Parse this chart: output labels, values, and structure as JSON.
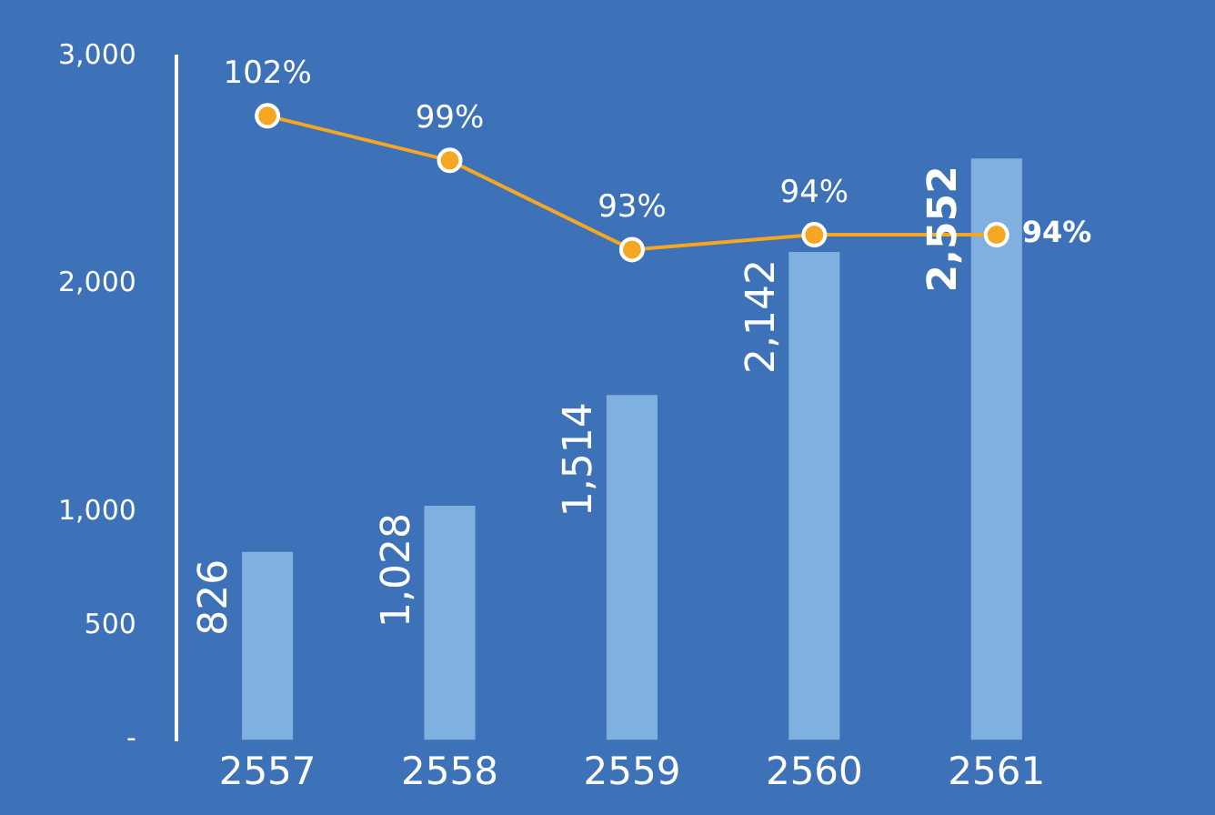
{
  "chart_data": {
    "type": "bar",
    "categories": [
      "2557",
      "2558",
      "2559",
      "2560",
      "2561"
    ],
    "series": [
      {
        "color": "#7fb0e0",
        "values": [
          826,
          1028,
          1514,
          2142,
          2552
        ],
        "value_labels": [
          "826",
          "1,028",
          "1,514",
          "2,142",
          "2,552"
        ]
      },
      {
        "type": "line",
        "axis": "y2",
        "color": "#f5a623",
        "values": [
          102,
          99,
          93,
          94,
          94
        ],
        "value_labels": [
          "102%",
          "99%",
          "93%",
          "94%",
          "94%"
        ]
      }
    ],
    "ylim": [
      0,
      3000
    ],
    "yticks": [
      {
        "value": 0,
        "label": "-"
      },
      500,
      {
        "value": 1000,
        "label": "1,000"
      },
      {
        "value": 2000,
        "label": "2,000"
      },
      {
        "value": 3000,
        "label": "3,000"
      }
    ],
    "y2lim": [
      60,
      106
    ],
    "grid": false,
    "legend": false,
    "marker": "circle",
    "line_style": "solid"
  }
}
